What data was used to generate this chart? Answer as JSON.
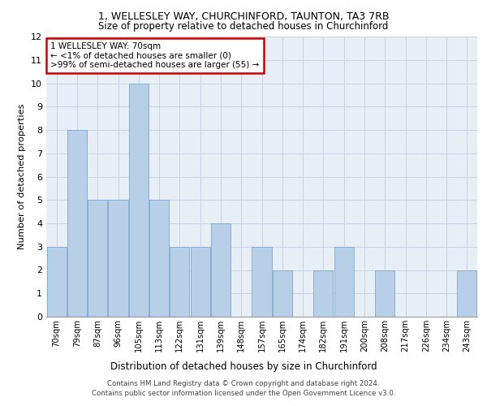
{
  "title1": "1, WELLESLEY WAY, CHURCHINFORD, TAUNTON, TA3 7RB",
  "title2": "Size of property relative to detached houses in Churchinford",
  "xlabel": "Distribution of detached houses by size in Churchinford",
  "ylabel": "Number of detached properties",
  "categories": [
    "70sqm",
    "79sqm",
    "87sqm",
    "96sqm",
    "105sqm",
    "113sqm",
    "122sqm",
    "131sqm",
    "139sqm",
    "148sqm",
    "157sqm",
    "165sqm",
    "174sqm",
    "182sqm",
    "191sqm",
    "200sqm",
    "208sqm",
    "217sqm",
    "226sqm",
    "234sqm",
    "243sqm"
  ],
  "values": [
    3,
    8,
    5,
    5,
    10,
    5,
    3,
    3,
    4,
    0,
    3,
    2,
    0,
    2,
    3,
    0,
    2,
    0,
    0,
    0,
    2
  ],
  "bar_color": "#b8cfe8",
  "bar_edge_color": "#7aaad0",
  "grid_color": "#c8d4e4",
  "bg_color": "#e8eef6",
  "annotation_text": "1 WELLESLEY WAY: 70sqm\n← <1% of detached houses are smaller (0)\n>99% of semi-detached houses are larger (55) →",
  "annotation_box_color": "#ffffff",
  "annotation_border_color": "#cc0000",
  "footer_line1": "Contains HM Land Registry data © Crown copyright and database right 2024.",
  "footer_line2": "Contains public sector information licensed under the Open Government Licence v3.0.",
  "ylim": [
    0,
    12
  ],
  "yticks": [
    0,
    1,
    2,
    3,
    4,
    5,
    6,
    7,
    8,
    9,
    10,
    11,
    12
  ]
}
